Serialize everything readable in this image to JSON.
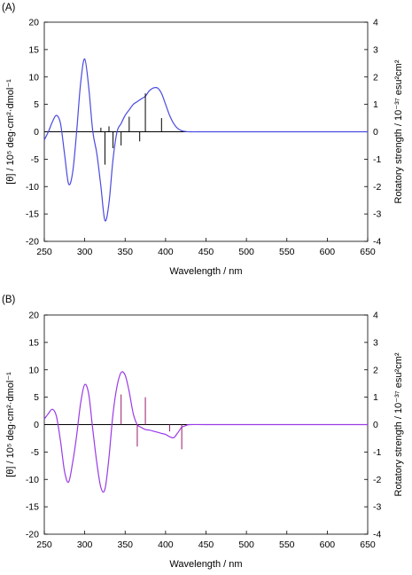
{
  "chart_data": [
    {
      "panel_label": "(A)",
      "type": "line",
      "xlabel": "Wavelength / nm",
      "ylabel_left": "[θ] / 10⁵ deg·cm²·dmol⁻¹",
      "ylabel_right": "Rotatory strength / 10⁻³⁷ esu²cm²",
      "xlim": [
        250,
        650
      ],
      "ylim": [
        -20,
        20
      ],
      "ylim_right": [
        -4,
        4
      ],
      "xticks": [
        250,
        300,
        350,
        400,
        450,
        500,
        550,
        600,
        650
      ],
      "yticks_left": [
        -20,
        -15,
        -10,
        -5,
        0,
        5,
        10,
        15,
        20
      ],
      "yticks_right": [
        -4,
        -3,
        -2,
        -1,
        0,
        1,
        2,
        3,
        4
      ],
      "grid": false,
      "curve_color": "#4a4ae0",
      "stick_color": "#000000",
      "series": [
        {
          "type": "line",
          "x": [
            250,
            255,
            260,
            265,
            270,
            275,
            280,
            285,
            290,
            295,
            300,
            305,
            310,
            315,
            320,
            325,
            330,
            335,
            340,
            345,
            350,
            355,
            360,
            365,
            370,
            375,
            380,
            385,
            390,
            395,
            400,
            405,
            410,
            415,
            420,
            425,
            430,
            450,
            500,
            550,
            600,
            650
          ],
          "y": [
            -1.5,
            0,
            1.8,
            3.0,
            1.5,
            -4.0,
            -9.5,
            -7.5,
            0,
            9,
            13.3,
            8,
            0,
            -4,
            -10,
            -16.2,
            -13,
            -5,
            0,
            1.5,
            3.0,
            4.0,
            5.0,
            5.5,
            6.0,
            6.5,
            7.5,
            8.0,
            8.0,
            7.0,
            5.0,
            3.0,
            1.5,
            0.6,
            0.2,
            0.05,
            0,
            0,
            0,
            0,
            0,
            0
          ]
        },
        {
          "type": "stick",
          "x": [
            320,
            325,
            330,
            335,
            345,
            355,
            368,
            375,
            395
          ],
          "y": [
            0.15,
            -1.2,
            0.2,
            -0.6,
            -0.5,
            0.55,
            -0.35,
            1.4,
            0.5
          ]
        }
      ]
    },
    {
      "panel_label": "(B)",
      "type": "line",
      "xlabel": "Wavelength / nm",
      "ylabel_left": "[θ] / 10⁵ deg·cm²·dmol⁻¹",
      "ylabel_right": "Rotatory strength / 10⁻³⁷ esu²cm²",
      "xlim": [
        250,
        650
      ],
      "ylim": [
        -20,
        20
      ],
      "ylim_right": [
        -4,
        4
      ],
      "xticks": [
        250,
        300,
        350,
        400,
        450,
        500,
        550,
        600,
        650
      ],
      "yticks_left": [
        -20,
        -15,
        -10,
        -5,
        0,
        5,
        10,
        15,
        20
      ],
      "yticks_right": [
        -4,
        -3,
        -2,
        -1,
        0,
        1,
        2,
        3,
        4
      ],
      "grid": false,
      "curve_color": "#9a3ae8",
      "stick_color": "#9a1a6a",
      "series": [
        {
          "type": "line",
          "x": [
            250,
            255,
            260,
            265,
            270,
            275,
            280,
            285,
            290,
            295,
            300,
            305,
            310,
            315,
            320,
            325,
            330,
            335,
            340,
            345,
            350,
            355,
            360,
            365,
            370,
            375,
            380,
            385,
            390,
            395,
            400,
            405,
            410,
            415,
            420,
            425,
            430,
            450,
            500,
            550,
            600,
            650
          ],
          "y": [
            1.0,
            2.0,
            2.8,
            1.5,
            -3,
            -8.5,
            -10.5,
            -7,
            -2,
            4,
            7.3,
            5.5,
            -1,
            -7,
            -11.5,
            -11.8,
            -6,
            2,
            7,
            9.5,
            9.0,
            6.0,
            2.0,
            0,
            -0.5,
            -0.9,
            -1.0,
            -1.2,
            -1.4,
            -1.6,
            -1.8,
            -2.2,
            -2.4,
            -1.5,
            -0.5,
            -0.2,
            0,
            0,
            0,
            0,
            0,
            0
          ]
        },
        {
          "type": "stick",
          "x": [
            345,
            365,
            375,
            405,
            420
          ],
          "y": [
            1.1,
            -0.8,
            1.0,
            -0.25,
            -0.9
          ]
        }
      ]
    }
  ]
}
